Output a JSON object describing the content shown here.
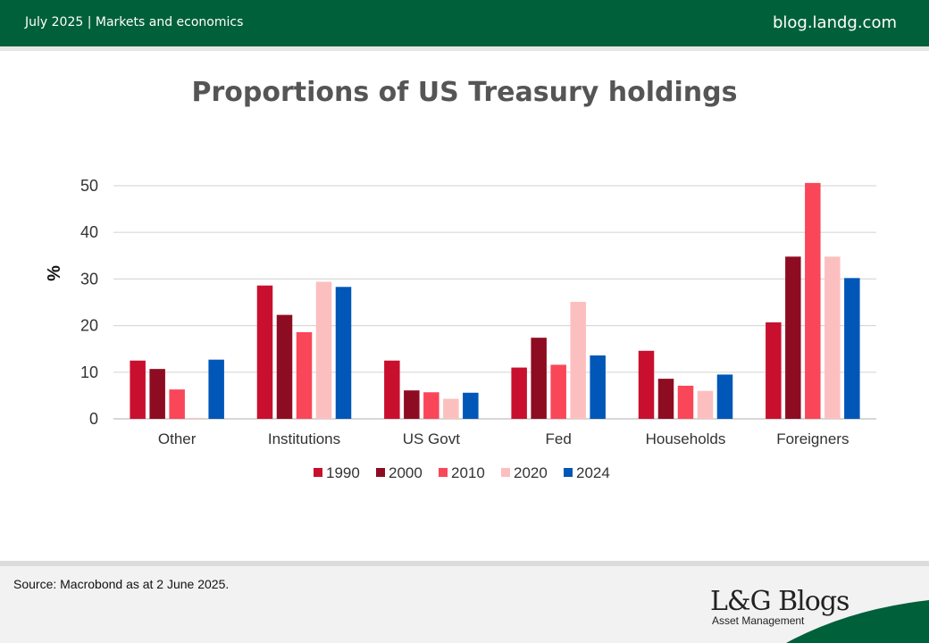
{
  "header": {
    "left_text": "July 2025 | Markets and economics",
    "right_text": "blog.landg.com"
  },
  "chart_data": {
    "type": "bar",
    "title": "Proportions of US Treasury holdings",
    "ylabel": "%",
    "xlabel": "",
    "ylim": [
      0,
      50
    ],
    "yticks": [
      0,
      10,
      20,
      30,
      40,
      50
    ],
    "grid": true,
    "legend_position": "bottom",
    "categories": [
      "Other",
      "Institutions",
      "US Govt",
      "Fed",
      "Households",
      "Foreigners"
    ],
    "series": [
      {
        "name": "1990",
        "color": "#c8102e",
        "values": [
          12.5,
          28.6,
          12.5,
          11.0,
          14.6,
          20.7
        ]
      },
      {
        "name": "2000",
        "color": "#8e0c22",
        "values": [
          10.7,
          22.3,
          6.1,
          17.4,
          8.6,
          34.8
        ]
      },
      {
        "name": "2010",
        "color": "#fa4659",
        "values": [
          6.3,
          18.6,
          5.7,
          11.6,
          7.1,
          50.6
        ]
      },
      {
        "name": "2020",
        "color": "#fcbfbf",
        "values": [
          0.2,
          29.4,
          4.3,
          25.1,
          6.0,
          34.8
        ]
      },
      {
        "name": "2024",
        "color": "#0057b8",
        "values": [
          12.7,
          28.3,
          5.6,
          13.6,
          9.5,
          30.2
        ]
      }
    ]
  },
  "footer": {
    "source": "Source: Macrobond as at 2 June 2025.",
    "logo_title": "L&G Blogs",
    "logo_subtitle": "Asset Management"
  }
}
